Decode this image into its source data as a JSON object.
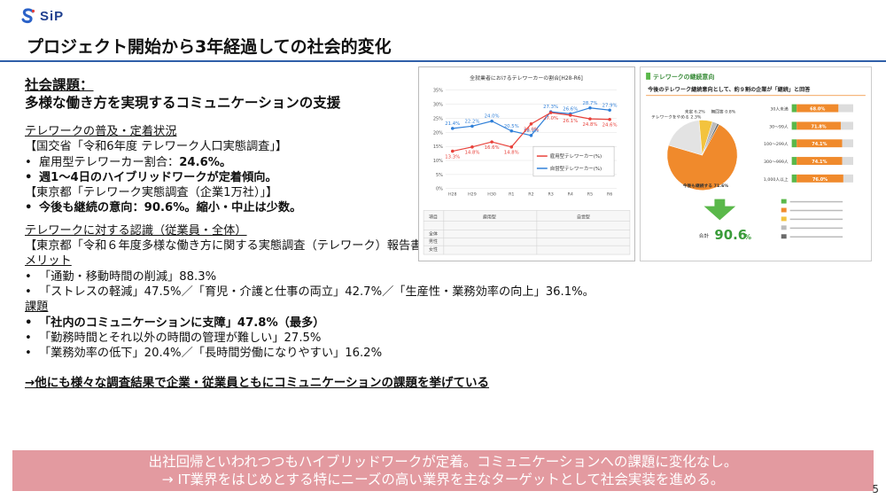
{
  "logo": {
    "text": "SiP"
  },
  "title": "プロジェクト開始から3年経過しての社会的変化",
  "heading": {
    "line1": "社会課題：",
    "line2": "多様な働き方を実現するコミュニケーションの支援"
  },
  "section1": {
    "title": "テレワークの普及・定着状況",
    "source1": "【国交省「令和6年度 テレワーク人口実態調査」】",
    "b1_prefix": "雇用型テレワーカー割合：",
    "b1_value": "24.6%。",
    "b2": "週1～4日のハイブリッドワークが定着傾向。",
    "source2": "【東京都「テレワーク実態調査（企業1万社）」】",
    "b3": "今後も継続の意向：90.6%。縮小・中止は少数。"
  },
  "section2": {
    "title": "テレワークに対する認識（従業員・全体）",
    "source": "【東京都「令和６年度多様な働き方に関する実態調査（テレワーク）報告書】",
    "merit_title": "メリット",
    "merits": [
      "「通勤・移動時間の削減」88.3%",
      "「ストレスの軽減」47.5%／「育児・介護と仕事の両立」42.7%／「生産性・業務効率の向上」36.1%。"
    ],
    "issue_title": "課題",
    "issues": [
      "「社内のコミュニケーションに支障」47.8%（最多）",
      "「勤務時間とそれ以外の時間の管理が難しい」27.5%",
      "「業務効率の低下」20.4%／「長時間労働になりやすい」16.2%"
    ]
  },
  "conclusion": "→他にも様々な調査結果で企業・従業員ともにコミュニケーションの課題を挙げている",
  "banner": {
    "line1": "出社回帰といわれつつもハイブリッドワークが定着。コミュニケーションへの課題に変化なし。",
    "line2": "→ IT業界をはじめとする特にニーズの高い業界を主なターゲットとして社会実装を進める。"
  },
  "page_number": "5",
  "figure1": {
    "title": "全就業者におけるテレワーカーの割合[H28-R6]",
    "y_ticks": [
      "35%",
      "30%",
      "25%",
      "20%",
      "15%",
      "10%",
      "5%",
      "0%"
    ],
    "x_labels": [
      "H28",
      "H29",
      "H30",
      "R1",
      "R2",
      "R3",
      "R4",
      "R5",
      "R6"
    ],
    "legend": [
      "雇用型テレワーカー(%)",
      "自営型テレワーカー(%)"
    ],
    "colors": {
      "employed": "#e8413a",
      "self": "#2f7fd8"
    },
    "employed_labels": [
      "13.3%",
      "14.8%",
      "16.6%",
      "14.8%",
      "23.0%",
      "27.0%",
      "26.1%",
      "24.8%",
      "24.6%"
    ],
    "self_labels": [
      "21.4%",
      "22.2%",
      "24.0%",
      "20.5%",
      "18.9%",
      "27.3%",
      "26.6%",
      "28.7%",
      "27.9%"
    ],
    "table_header": [
      "項目",
      "雇用型",
      "自営型"
    ],
    "table_rows": [
      "全体",
      "男性",
      "女性"
    ]
  },
  "figure2": {
    "title": "テレワークの継続意向",
    "subtitle": "今後のテレワーク継続意向として、約９割の企業が「継続」と回答",
    "pie_labels": [
      "今後も継続する 71.6%",
      "未定 6.2%",
      "テレワークをやめる 2.3%",
      "無回答 0.8%"
    ],
    "total_label": "合計",
    "total_value": "90.6",
    "total_unit": "%",
    "bar_groups": [
      "30人未満",
      "30～99人",
      "100～299人",
      "300～999人",
      "1,000人以上"
    ],
    "bar_values": [
      "68.0%",
      "71.8%",
      "74.1%",
      "74.1%",
      "76.0%"
    ],
    "colors": {
      "orange": "#f08a2c",
      "green": "#5ab84a",
      "gray": "#bcbcbc",
      "yellow": "#f3c33e"
    }
  }
}
